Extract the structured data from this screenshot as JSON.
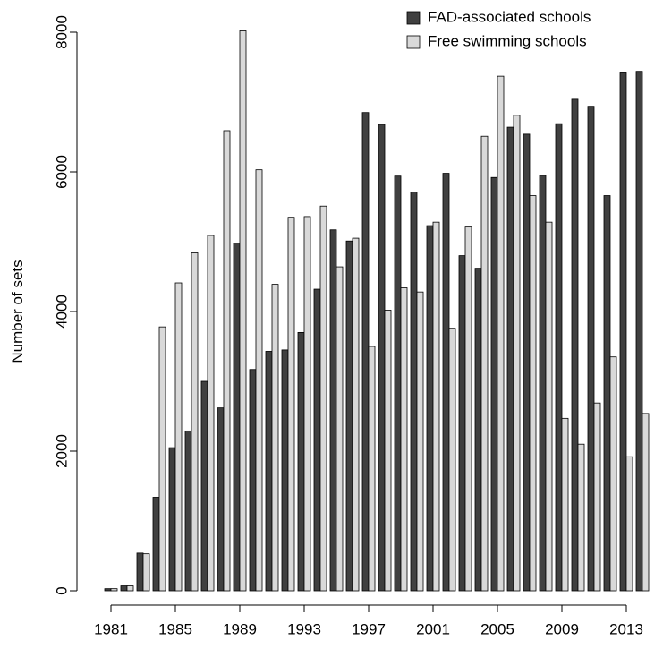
{
  "chart_data": {
    "type": "bar",
    "y_label": "Number of sets",
    "categories": [
      "1981",
      null,
      null,
      null,
      "1985",
      null,
      null,
      null,
      "1989",
      null,
      null,
      null,
      "1993",
      null,
      null,
      null,
      "1997",
      null,
      null,
      null,
      "2001",
      null,
      null,
      null,
      "2005",
      null,
      null,
      null,
      "2009",
      null,
      null,
      null,
      "2013",
      null
    ],
    "series": [
      {
        "name": "FAD-associated schools",
        "color": "#404040",
        "values": [
          30,
          70,
          540,
          1340,
          2050,
          2290,
          3000,
          2620,
          4980,
          3170,
          3430,
          3450,
          3700,
          4320,
          5170,
          5010,
          6850,
          6680,
          5940,
          5710,
          5230,
          5980,
          4800,
          4620,
          5920,
          6640,
          6540,
          5950,
          6690,
          7040,
          6940,
          5660,
          7430,
          7440
        ]
      },
      {
        "name": "Free swimming schools",
        "color": "#d9d9d9",
        "values": [
          30,
          70,
          530,
          3780,
          4410,
          4840,
          5090,
          6590,
          8020,
          6030,
          4390,
          5350,
          5360,
          5510,
          4640,
          5050,
          3500,
          4020,
          4340,
          4280,
          5280,
          3760,
          5210,
          6510,
          7370,
          6810,
          5660,
          5280,
          2470,
          2100,
          2690,
          3350,
          1920,
          2540
        ]
      }
    ],
    "ylim": [
      0,
      8000
    ],
    "yticks": [
      0,
      2000,
      4000,
      6000,
      8000
    ]
  }
}
